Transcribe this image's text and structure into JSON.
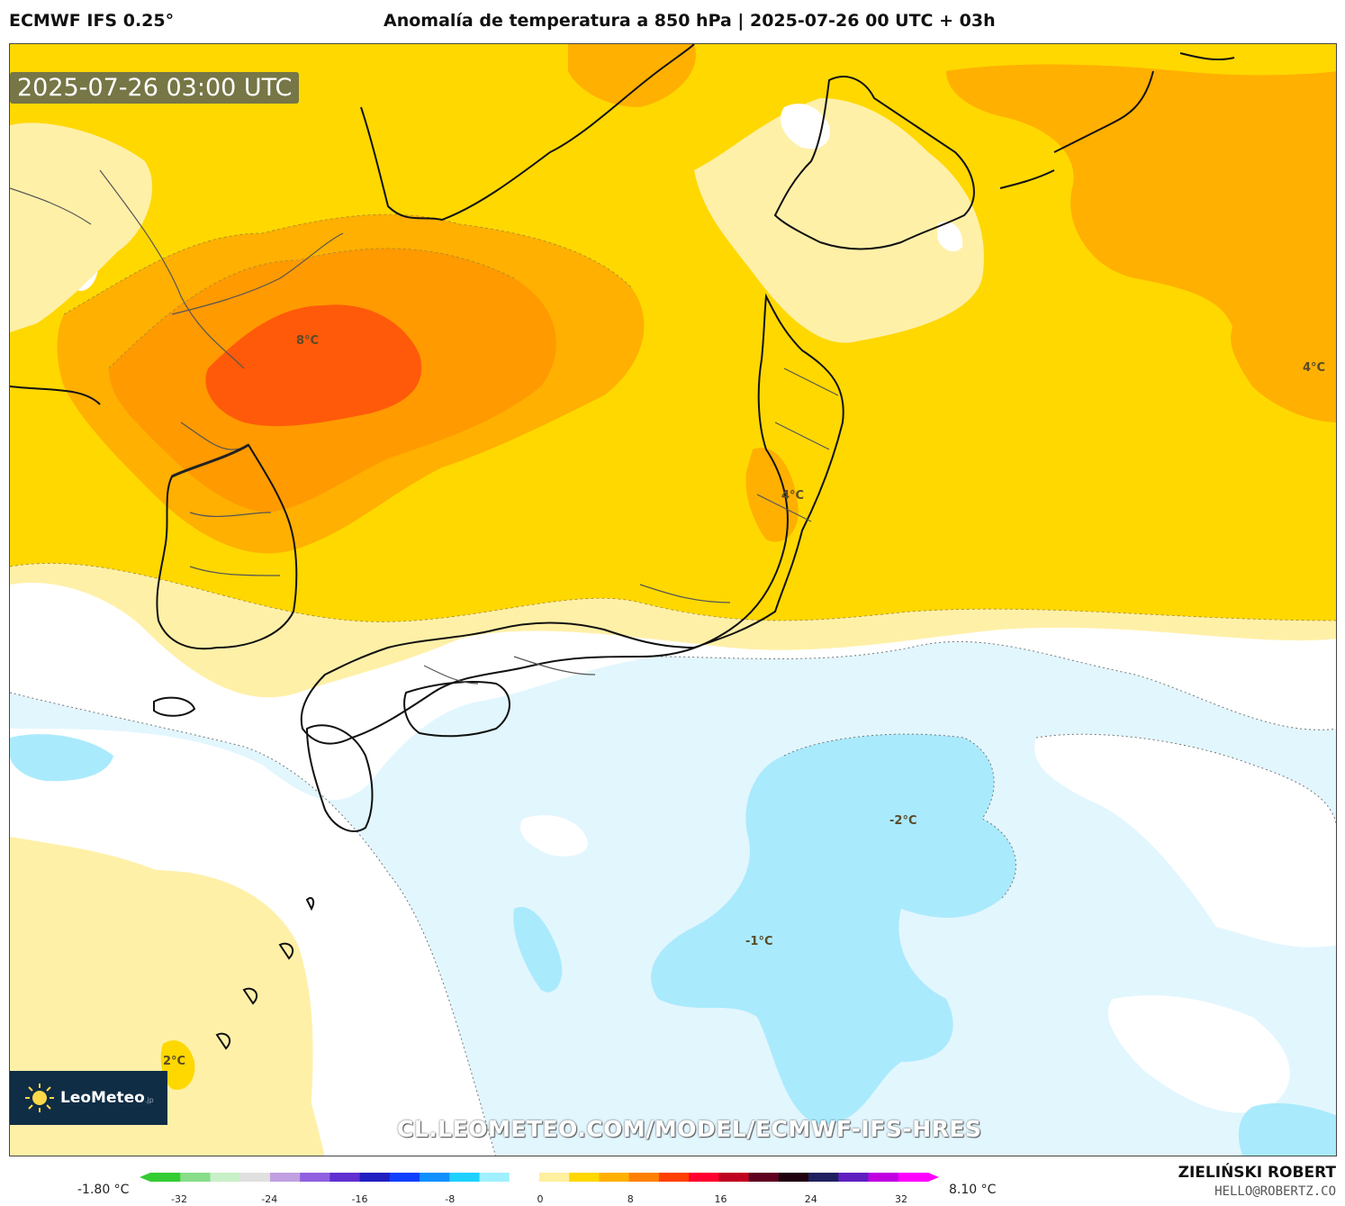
{
  "header": {
    "model": "ECMWF IFS 0.25°",
    "title": "Anomalía de temperatura a 850 hPa | 2025-07-26 00 UTC + 03h"
  },
  "map": {
    "timestamp": "2025-07-26 03:00 UTC",
    "contour_labels": [
      "8°C",
      "4°C",
      "4°C",
      "-2°C",
      "-1°C",
      "2°C"
    ],
    "watermark": "CL.LEOMETEO.COM/MODEL/ECMWF-IFS-HRES",
    "logo": {
      "name": "LeoMeteo",
      "suffix": ".jp",
      "icon": "sun-icon"
    },
    "palette": {
      "deep_orange": "#ff5a0a",
      "orange": "#ff9a00",
      "light_orange": "#ffb000",
      "dark_yellow": "#ffc400",
      "yellow": "#ffd800",
      "pale_yellow": "#fff0a8",
      "white": "#ffffff",
      "pale_blue": "#e2f6fe",
      "light_blue": "#aaeafd"
    }
  },
  "colorbar": {
    "min_label": "-1.80 °C",
    "max_label": "8.10 °C",
    "ticks": [
      "-32",
      "-24",
      "-16",
      "-8",
      "0",
      "8",
      "16",
      "24",
      "32"
    ],
    "colors": [
      "#33cc33",
      "#88dd88",
      "#c8f0c8",
      "#e0e0e0",
      "#c0a0e0",
      "#9060e0",
      "#6030d0",
      "#2020c0",
      "#1040ff",
      "#1090ff",
      "#20d0ff",
      "#a0f0ff",
      "#ffffff",
      "#fff0a0",
      "#ffd800",
      "#ffb000",
      "#ff8000",
      "#ff4000",
      "#ff0030",
      "#c00020",
      "#600020",
      "#200010",
      "#202060",
      "#6020c0",
      "#c000e0",
      "#ff00ff"
    ]
  },
  "footer": {
    "author": "ZIELIŃSKI ROBERT",
    "email": "HELLO@ROBERTZ.CO"
  }
}
